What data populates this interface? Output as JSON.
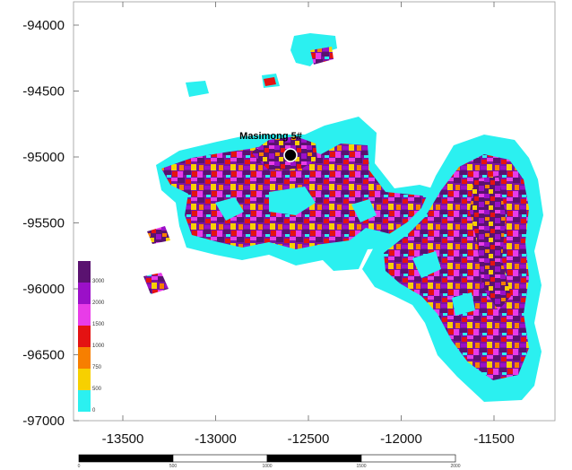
{
  "map": {
    "y_ticks": [
      "-94000",
      "-94500",
      "-95000",
      "-95500",
      "-96000",
      "-96500",
      "-97000"
    ],
    "x_ticks": [
      "-13500",
      "-13000",
      "-12500",
      "-12000",
      "-11500"
    ],
    "well": {
      "label": "Masimong 5#"
    },
    "legend": {
      "labels": [
        "3000",
        "2000",
        "1500",
        "1000",
        "750",
        "500",
        "0"
      ],
      "colors": [
        "#5a1270",
        "#9b10c8",
        "#e83ce8",
        "#e41212",
        "#f77f00",
        "#f7d000",
        "#2bf0f0"
      ]
    },
    "scale_bar": {
      "labels": [
        "0",
        "500",
        "1000",
        "1500",
        "2000"
      ]
    }
  }
}
